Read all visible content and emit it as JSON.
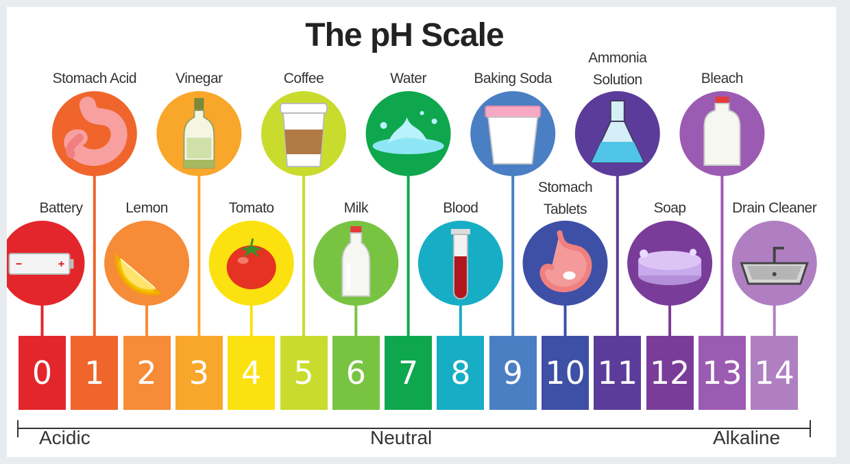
{
  "title": "The pH Scale",
  "scale": {
    "numbers": [
      "0",
      "1",
      "2",
      "3",
      "4",
      "5",
      "6",
      "7",
      "8",
      "9",
      "10",
      "11",
      "12",
      "13",
      "14"
    ],
    "colors": [
      "#e3262b",
      "#f0652c",
      "#f68b38",
      "#f9a72b",
      "#fbe10f",
      "#c9dc2d",
      "#79c342",
      "#0fa74e",
      "#17adc5",
      "#4a7fc4",
      "#3e4fa6",
      "#5c3c9b",
      "#7a3c99",
      "#9c5bb2",
      "#b07fc2"
    ]
  },
  "items": [
    {
      "name": "Battery",
      "ph": 0,
      "row": "low",
      "icon": "battery-icon"
    },
    {
      "name": "Stomach Acid",
      "ph": 1,
      "row": "high",
      "icon": "stomach-icon"
    },
    {
      "name": "Lemon",
      "ph": 2,
      "row": "low",
      "icon": "lemon-icon"
    },
    {
      "name": "Vinegar",
      "ph": 3,
      "row": "high",
      "icon": "vinegar-bottle-icon"
    },
    {
      "name": "Tomato",
      "ph": 4,
      "row": "low",
      "icon": "tomato-icon"
    },
    {
      "name": "Coffee",
      "ph": 5,
      "row": "high",
      "icon": "coffee-cup-icon"
    },
    {
      "name": "Milk",
      "ph": 6,
      "row": "low",
      "icon": "milk-bottle-icon"
    },
    {
      "name": "Water",
      "ph": 7,
      "row": "high",
      "icon": "water-splash-icon"
    },
    {
      "name": "Blood",
      "ph": 8,
      "row": "low",
      "icon": "blood-test-tube-icon"
    },
    {
      "name": "Baking Soda",
      "ph": 9,
      "row": "high",
      "icon": "baking-soda-cup-icon"
    },
    {
      "name": "Stomach Tablets",
      "ph": 10,
      "row": "low",
      "icon": "stomach-tablet-icon"
    },
    {
      "name": "Ammonia Solution",
      "ph": 11,
      "row": "high",
      "icon": "flask-icon"
    },
    {
      "name": "Soap",
      "ph": 12,
      "row": "low",
      "icon": "soap-bar-icon"
    },
    {
      "name": "Bleach",
      "ph": 13,
      "row": "high",
      "icon": "bleach-jug-icon"
    },
    {
      "name": "Drain Cleaner",
      "ph": 14,
      "row": "low",
      "icon": "sink-icon"
    }
  ],
  "axis": {
    "left": "Acidic",
    "center": "Neutral",
    "right": "Alkaline"
  }
}
